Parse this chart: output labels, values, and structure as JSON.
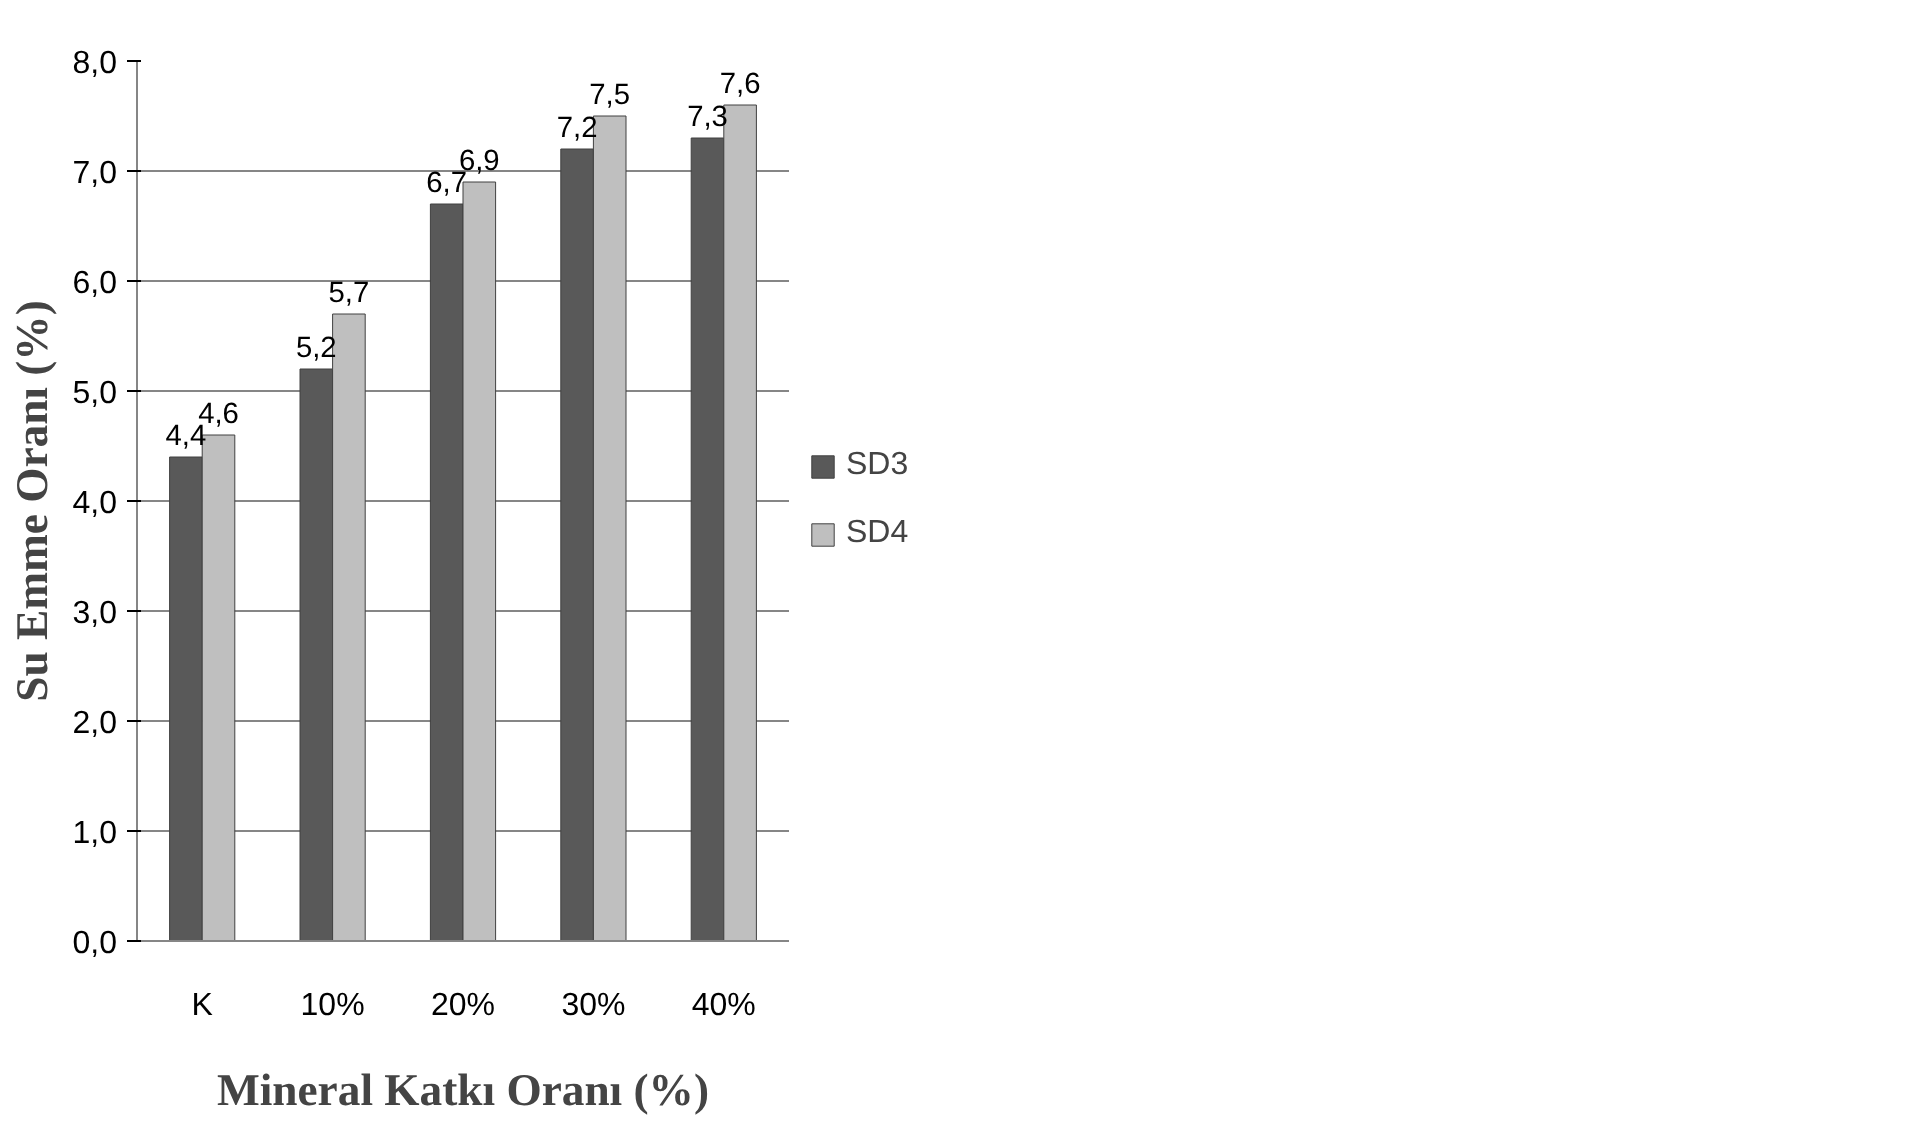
{
  "chart_data": {
    "type": "bar",
    "xlabel": "Mineral Katkı Oranı (%)",
    "ylabel": "Su Emme Oranı (%)",
    "categories": [
      "K",
      "10%",
      "20%",
      "30%",
      "40%"
    ],
    "series": [
      {
        "name": "SD3",
        "color": "#595959",
        "values": [
          4.4,
          5.2,
          6.7,
          7.2,
          7.3
        ],
        "value_labels": [
          "4,4",
          "5,2",
          "6,7",
          "7,2",
          "7,3"
        ]
      },
      {
        "name": "SD4",
        "color": "#bfbfbf",
        "values": [
          4.6,
          5.7,
          6.9,
          7.5,
          7.6
        ],
        "value_labels": [
          "4,6",
          "5,7",
          "6,9",
          "7,5",
          "7,6"
        ]
      }
    ],
    "ylim": [
      0,
      8
    ],
    "yticks": [
      {
        "value": 0,
        "label": "0,0"
      },
      {
        "value": 1,
        "label": "1,0"
      },
      {
        "value": 2,
        "label": "2,0"
      },
      {
        "value": 3,
        "label": "3,0"
      },
      {
        "value": 4,
        "label": "4,0"
      },
      {
        "value": 5,
        "label": "5,0"
      },
      {
        "value": 6,
        "label": "6,0"
      },
      {
        "value": 7,
        "label": "7,0"
      },
      {
        "value": 8,
        "label": "8,0"
      }
    ],
    "grid": "y",
    "legend": "right"
  }
}
